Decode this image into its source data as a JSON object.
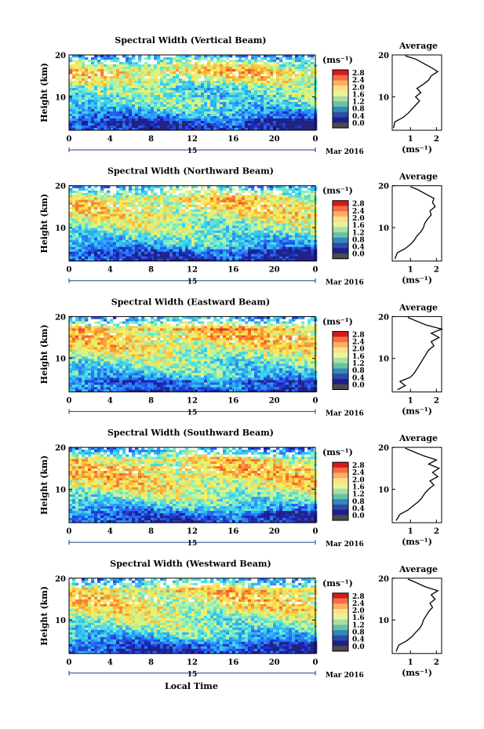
{
  "figure": {
    "common_xlabel": "Local Time",
    "colorbar_unit": "(ms⁻¹)",
    "colorbar_ticks": [
      "2.8",
      "2.4",
      "2.0",
      "1.6",
      "1.2",
      "0.8",
      "0.4",
      "0.0"
    ],
    "colorbar_colors": [
      "#d7191c",
      "#f46d43",
      "#fdae61",
      "#fee08b",
      "#e6f598",
      "#abdda4",
      "#66c2a5",
      "#3288bd",
      "#2c4ca5",
      "#1e1e8a",
      "#4a4a4a"
    ],
    "profile_title": "Average",
    "profile_xlabel": "(ms⁻¹)",
    "day_label": "15",
    "month_label": "Mar 2016"
  },
  "chart_data": [
    {
      "type": "heatmap",
      "title": "Spectral Width (Vertical Beam)",
      "ylabel": "Height (km)",
      "x_ticks": [
        "0",
        "4",
        "8",
        "12",
        "16",
        "20",
        "0"
      ],
      "xlim": [
        0,
        24
      ],
      "y_ticks": [
        "20",
        "10"
      ],
      "ylim": [
        2,
        20
      ],
      "clim": [
        0.0,
        3.0
      ],
      "profile": {
        "x_ticks": [
          "1",
          "2"
        ],
        "xlim": [
          0.3,
          2.2
        ],
        "heights": [
          2.5,
          4,
          5,
          6,
          7,
          8,
          9,
          10,
          11,
          12,
          13,
          14,
          15,
          16,
          17,
          18,
          19,
          19.8
        ],
        "values": [
          0.35,
          0.4,
          0.7,
          0.9,
          1.05,
          1.2,
          1.35,
          1.2,
          1.4,
          1.25,
          1.5,
          1.7,
          1.8,
          2.05,
          1.8,
          1.5,
          1.2,
          0.8
        ]
      }
    },
    {
      "type": "heatmap",
      "title": "Spectral Width (Northward Beam)",
      "ylabel": "Height (km)",
      "x_ticks": [
        "0",
        "4",
        "8",
        "12",
        "16",
        "20",
        "0"
      ],
      "xlim": [
        0,
        24
      ],
      "y_ticks": [
        "20",
        "10"
      ],
      "ylim": [
        2,
        20
      ],
      "clim": [
        0.0,
        3.0
      ],
      "profile": {
        "x_ticks": [
          "1",
          "2"
        ],
        "xlim": [
          0.3,
          2.2
        ],
        "heights": [
          2.5,
          4,
          5,
          6,
          7,
          8,
          9,
          10,
          11,
          12,
          13,
          14,
          15,
          16,
          17,
          18,
          19,
          19.8
        ],
        "values": [
          0.4,
          0.5,
          0.8,
          1.0,
          1.15,
          1.25,
          1.4,
          1.5,
          1.55,
          1.65,
          1.8,
          1.75,
          1.95,
          1.85,
          1.9,
          1.6,
          1.3,
          1.0
        ]
      }
    },
    {
      "type": "heatmap",
      "title": "Spectral Width (Eastward Beam)",
      "ylabel": "Height (km)",
      "x_ticks": [
        "0",
        "4",
        "8",
        "12",
        "16",
        "20",
        "0"
      ],
      "xlim": [
        0,
        24
      ],
      "y_ticks": [
        "20",
        "10"
      ],
      "ylim": [
        2,
        20
      ],
      "clim": [
        0.0,
        3.0
      ],
      "profile": {
        "x_ticks": [
          "1",
          "2"
        ],
        "xlim": [
          0.3,
          2.2
        ],
        "heights": [
          2.5,
          3.5,
          4.5,
          5.5,
          6.5,
          8,
          9,
          10,
          11,
          12,
          13,
          14,
          15,
          16,
          17,
          18,
          19,
          19.8
        ],
        "values": [
          0.5,
          0.8,
          0.6,
          1.0,
          1.15,
          1.3,
          1.4,
          1.5,
          1.6,
          1.7,
          1.9,
          1.8,
          2.1,
          1.8,
          2.2,
          1.6,
          1.2,
          0.9
        ]
      }
    },
    {
      "type": "heatmap",
      "title": "Spectral Width (Southward Beam)",
      "ylabel": "Height (km)",
      "x_ticks": [
        "0",
        "4",
        "8",
        "12",
        "16",
        "20",
        "0"
      ],
      "xlim": [
        0,
        24
      ],
      "y_ticks": [
        "20",
        "10"
      ],
      "ylim": [
        2,
        20
      ],
      "clim": [
        0.0,
        3.0
      ],
      "profile": {
        "x_ticks": [
          "1",
          "2"
        ],
        "xlim": [
          0.3,
          2.2
        ],
        "heights": [
          2.5,
          4,
          5,
          6,
          7,
          8,
          9,
          10,
          11,
          12,
          13,
          14,
          15,
          16,
          17,
          18,
          19,
          19.8
        ],
        "values": [
          0.45,
          0.6,
          0.9,
          1.1,
          1.3,
          1.45,
          1.55,
          1.7,
          1.9,
          1.75,
          2.05,
          1.85,
          2.1,
          1.7,
          2.0,
          1.5,
          1.1,
          0.8
        ]
      }
    },
    {
      "type": "heatmap",
      "title": "Spectral Width (Westward Beam)",
      "ylabel": "Height (km)",
      "x_ticks": [
        "0",
        "4",
        "8",
        "12",
        "16",
        "20",
        "0"
      ],
      "xlim": [
        0,
        24
      ],
      "y_ticks": [
        "20",
        "10"
      ],
      "ylim": [
        2,
        20
      ],
      "clim": [
        0.0,
        3.0
      ],
      "profile": {
        "x_ticks": [
          "1",
          "2"
        ],
        "xlim": [
          0.3,
          2.2
        ],
        "heights": [
          2.5,
          4,
          5,
          6,
          7,
          8,
          9,
          10,
          11,
          12,
          13,
          14,
          15,
          16,
          17,
          18,
          19,
          19.8
        ],
        "values": [
          0.45,
          0.55,
          0.85,
          1.05,
          1.2,
          1.35,
          1.45,
          1.5,
          1.6,
          1.7,
          1.85,
          1.75,
          1.95,
          1.8,
          2.05,
          1.55,
          1.2,
          0.9
        ]
      }
    }
  ]
}
